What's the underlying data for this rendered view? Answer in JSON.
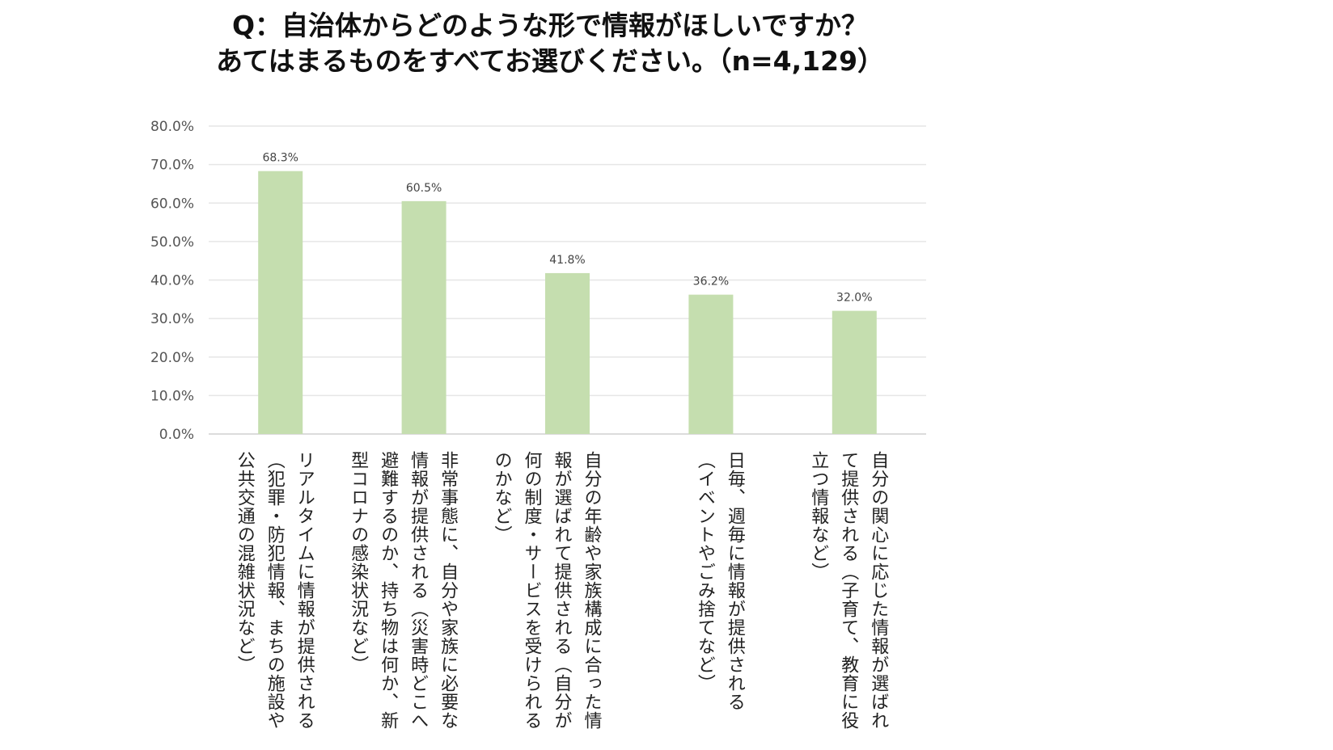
{
  "title": {
    "line1": "Q：自治体からどのような形で情報がほしいですか？",
    "line2": "あてはまるものをすべてお選びください。（n=4,129）"
  },
  "chart_data": {
    "type": "bar",
    "categories": [
      "リアルタイムに情報が提供される（犯罪・防犯情報、まちの施設や公共交通の混雑状況など）",
      "非常事態に、自分や家族に必要な情報が提供される（災害時どこへ避難するのか、持ち物は何か、新型コロナの感染状況など）",
      "自分の年齢や家族構成に合った情報が選ばれて提供される（自分が何の制度・サービスを受けられるのかなど）",
      "日毎、週毎に情報が提供される（イベントやごみ捨てなど）",
      "自分の関心に応じた情報が選ばれて提供される（子育て、教育に役立つ情報など）"
    ],
    "values": [
      68.3,
      60.5,
      41.8,
      36.2,
      32.0
    ],
    "data_labels": [
      "68.3%",
      "60.5%",
      "41.8%",
      "36.2%",
      "32.0%"
    ],
    "yticks": [
      0,
      10,
      20,
      30,
      40,
      50,
      60,
      70,
      80
    ],
    "ytick_labels": [
      "0.0%",
      "10.0%",
      "20.0%",
      "30.0%",
      "40.0%",
      "50.0%",
      "60.0%",
      "70.0%",
      "80.0%"
    ],
    "ylim": [
      0,
      80
    ],
    "grid": true,
    "bar_color": "#c5deaf",
    "grid_color": "#e6e6e6",
    "axis_color": "#d0d0d0"
  }
}
